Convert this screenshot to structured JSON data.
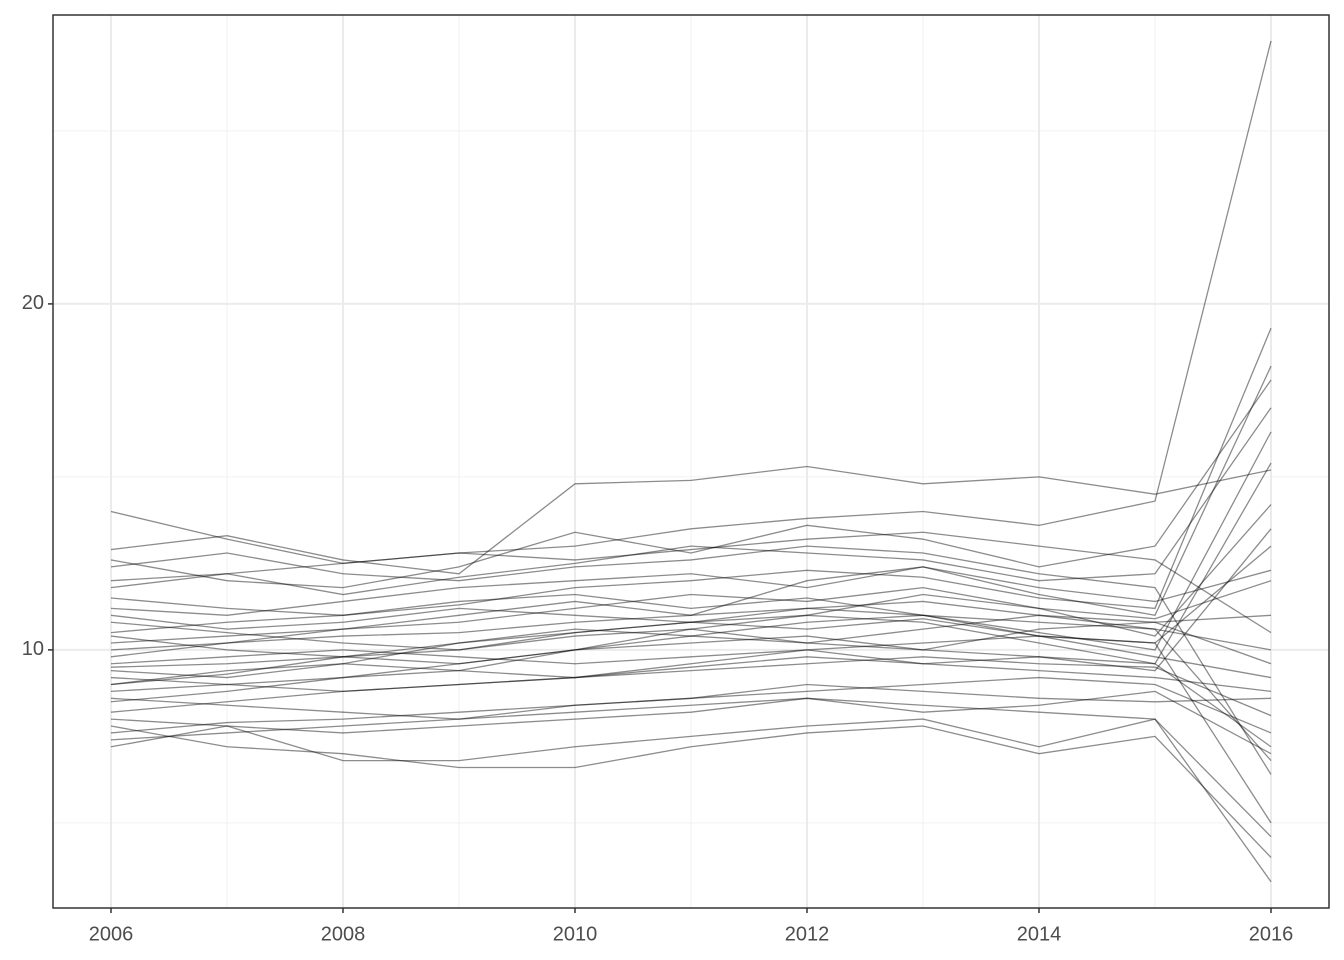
{
  "chart_data": {
    "type": "line",
    "x": [
      2006,
      2007,
      2008,
      2009,
      2010,
      2011,
      2012,
      2013,
      2014,
      2015,
      2016
    ],
    "xlim": [
      2005.5,
      2016.5
    ],
    "xticks": [
      2006,
      2008,
      2010,
      2012,
      2014,
      2016
    ],
    "minor_xticks": [
      2007,
      2009,
      2011,
      2013,
      2015
    ],
    "ylim": [
      2.54,
      28.35
    ],
    "yticks": [
      10,
      20
    ],
    "minor_yticks": [
      5,
      15,
      25
    ],
    "grid": true,
    "color": "#000000",
    "opacity": 0.45,
    "series": [
      {
        "values": [
          14.0,
          13.2,
          12.5,
          12.8,
          13.0,
          13.5,
          13.8,
          14.0,
          13.6,
          14.3,
          27.6
        ]
      },
      {
        "values": [
          12.9,
          13.3,
          12.6,
          12.2,
          14.8,
          14.9,
          15.3,
          14.8,
          15.0,
          14.5,
          15.2
        ]
      },
      {
        "values": [
          7.2,
          7.8,
          6.8,
          6.8,
          7.2,
          7.5,
          7.8,
          8.0,
          7.2,
          8.0,
          3.3
        ]
      },
      {
        "values": [
          7.8,
          7.2,
          7.0,
          6.6,
          6.6,
          7.2,
          7.6,
          7.8,
          7.0,
          7.5,
          4.0
        ]
      },
      {
        "values": [
          10.5,
          10.8,
          11.0,
          11.3,
          11.8,
          12.0,
          12.3,
          12.1,
          11.5,
          11.2,
          19.3
        ]
      },
      {
        "values": [
          9.8,
          10.2,
          10.6,
          11.0,
          11.4,
          11.0,
          12.0,
          12.4,
          11.6,
          11.0,
          18.2
        ]
      },
      {
        "values": [
          11.8,
          12.2,
          11.6,
          12.1,
          12.5,
          13.0,
          12.8,
          12.6,
          12.0,
          12.2,
          17.0
        ]
      },
      {
        "values": [
          9.0,
          9.3,
          9.8,
          10.2,
          10.5,
          10.8,
          11.2,
          11.0,
          10.5,
          10.0,
          16.3
        ]
      },
      {
        "values": [
          8.5,
          8.8,
          9.2,
          9.4,
          10.0,
          10.6,
          11.0,
          10.8,
          10.2,
          9.6,
          15.4
        ]
      },
      {
        "values": [
          10.2,
          10.4,
          10.6,
          10.8,
          11.2,
          11.6,
          11.4,
          11.8,
          11.2,
          10.4,
          14.2
        ]
      },
      {
        "values": [
          9.5,
          9.6,
          9.8,
          10.0,
          10.5,
          10.8,
          10.6,
          10.9,
          10.4,
          10.2,
          13.0
        ]
      },
      {
        "values": [
          11.2,
          11.0,
          11.4,
          11.8,
          12.0,
          12.2,
          11.8,
          12.4,
          11.8,
          11.4,
          12.3
        ]
      },
      {
        "values": [
          8.8,
          9.0,
          9.2,
          9.6,
          10.0,
          10.2,
          10.4,
          10.0,
          10.6,
          10.8,
          11.0
        ]
      },
      {
        "values": [
          10.0,
          10.2,
          10.4,
          10.5,
          10.8,
          11.0,
          11.2,
          11.4,
          11.0,
          10.6,
          10.0
        ]
      },
      {
        "values": [
          8.2,
          8.5,
          8.8,
          9.0,
          9.2,
          9.5,
          9.8,
          9.6,
          9.4,
          9.2,
          8.8
        ]
      },
      {
        "values": [
          9.2,
          9.0,
          8.8,
          9.0,
          9.2,
          9.4,
          9.6,
          9.8,
          9.6,
          9.5,
          8.1
        ]
      },
      {
        "values": [
          7.6,
          7.9,
          8.0,
          8.2,
          8.4,
          8.6,
          8.8,
          9.0,
          9.2,
          9.0,
          7.6
        ]
      },
      {
        "values": [
          10.8,
          10.5,
          10.2,
          10.0,
          10.4,
          10.6,
          10.2,
          10.0,
          9.8,
          9.6,
          7.2
        ]
      },
      {
        "values": [
          11.5,
          11.2,
          11.0,
          11.4,
          11.6,
          11.2,
          11.5,
          11.0,
          10.8,
          10.6,
          6.8
        ]
      },
      {
        "values": [
          12.4,
          12.8,
          12.2,
          12.0,
          12.4,
          12.6,
          13.0,
          12.8,
          12.2,
          11.8,
          6.4
        ]
      },
      {
        "values": [
          9.6,
          9.8,
          10.0,
          9.8,
          9.6,
          9.8,
          10.0,
          10.2,
          10.4,
          10.2,
          5.0
        ]
      },
      {
        "values": [
          8.0,
          7.8,
          7.6,
          7.8,
          8.0,
          8.2,
          8.6,
          8.4,
          8.2,
          8.0,
          4.6
        ]
      },
      {
        "values": [
          12.0,
          12.2,
          12.5,
          12.8,
          12.6,
          12.9,
          13.2,
          13.4,
          13.0,
          12.6,
          10.5
        ]
      },
      {
        "values": [
          10.4,
          10.0,
          9.8,
          9.6,
          10.0,
          10.4,
          10.8,
          11.0,
          10.4,
          9.8,
          9.2
        ]
      },
      {
        "values": [
          9.0,
          9.4,
          9.6,
          9.4,
          9.2,
          9.6,
          10.0,
          9.6,
          9.8,
          9.4,
          13.5
        ]
      },
      {
        "values": [
          8.6,
          8.4,
          8.2,
          8.0,
          8.4,
          8.6,
          9.0,
          8.8,
          8.6,
          8.5,
          8.6
        ]
      },
      {
        "values": [
          11.0,
          10.6,
          10.8,
          11.2,
          11.0,
          10.8,
          11.0,
          11.6,
          11.2,
          10.9,
          12.0
        ]
      },
      {
        "values": [
          7.4,
          7.6,
          7.8,
          8.0,
          8.2,
          8.4,
          8.6,
          8.2,
          8.4,
          8.8,
          7.0
        ]
      },
      {
        "values": [
          12.6,
          12.0,
          11.8,
          12.4,
          13.4,
          12.8,
          13.6,
          13.2,
          12.4,
          13.0,
          17.8
        ]
      },
      {
        "values": [
          9.4,
          9.2,
          9.6,
          10.2,
          10.6,
          10.4,
          10.2,
          10.6,
          11.0,
          10.8,
          9.6
        ]
      }
    ]
  }
}
